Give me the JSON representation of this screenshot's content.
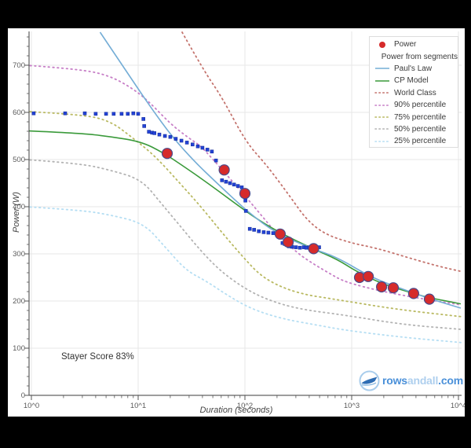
{
  "window": {
    "background": "#000000"
  },
  "chart": {
    "xlabel": "Duration (seconds)",
    "ylabel": "Power (W)",
    "annotation": "Stayer Score 83%",
    "x_tick_labels": [
      "10^0",
      "10^1",
      "10^2",
      "10^3",
      "10^4"
    ],
    "y_tick_labels": [
      "0",
      "100",
      "200",
      "300",
      "400",
      "500",
      "600",
      "700"
    ]
  },
  "legend": {
    "position": "top-right",
    "items": [
      {
        "label": "Power",
        "marker": "dot",
        "color": "#d62b2b"
      },
      {
        "label": "Power from segments",
        "marker": "dot",
        "color": "#2343d7"
      },
      {
        "label": "Paul's Law",
        "marker": "line",
        "color": "#74add6"
      },
      {
        "label": "CP Model",
        "marker": "line",
        "color": "#3a9a3a"
      },
      {
        "label": "World Class",
        "marker": "dotted-line",
        "color": "#c4736d"
      },
      {
        "label": "90% percentile",
        "marker": "dotted-line",
        "color": "#c77fc7"
      },
      {
        "label": "75% percentile",
        "marker": "dotted-line",
        "color": "#b9b961"
      },
      {
        "label": "50% percentile",
        "marker": "dotted-line",
        "color": "#b3b3b3"
      },
      {
        "label": "25% percentile",
        "marker": "dotted-line",
        "color": "#b5def3"
      }
    ]
  },
  "logo": {
    "part1": "rows",
    "part2": "andall",
    "part3": ".com"
  },
  "chart_data": {
    "type": "line",
    "x_scale": "log",
    "x_range": [
      1,
      10400
    ],
    "y_range": [
      0,
      772
    ],
    "grid": true,
    "xlabel": "Duration (seconds)",
    "ylabel": "Power (W)",
    "series": [
      {
        "name": "25% percentile",
        "kind": "line",
        "style": "dotted",
        "color": "#b5def3",
        "width": 1.8,
        "points": [
          [
            0.88,
            400
          ],
          [
            2.8,
            393
          ],
          [
            5.4,
            383
          ],
          [
            11.3,
            365
          ],
          [
            17.8,
            315
          ],
          [
            28,
            265
          ],
          [
            43.6,
            242
          ],
          [
            68.7,
            212
          ],
          [
            115,
            183
          ],
          [
            225,
            162
          ],
          [
            500,
            148
          ],
          [
            871,
            138
          ],
          [
            3010,
            123
          ],
          [
            10520,
            112
          ]
        ]
      },
      {
        "name": "50% percentile",
        "kind": "line",
        "style": "dotted",
        "color": "#b3b3b3",
        "width": 1.8,
        "points": [
          [
            0.88,
            500
          ],
          [
            2.8,
            492
          ],
          [
            5.4,
            478
          ],
          [
            10.7,
            458
          ],
          [
            16.3,
            408
          ],
          [
            25,
            358
          ],
          [
            38,
            308
          ],
          [
            58,
            265
          ],
          [
            97,
            228
          ],
          [
            160,
            203
          ],
          [
            316,
            183
          ],
          [
            871,
            170
          ],
          [
            3010,
            150
          ],
          [
            10520,
            140
          ]
        ]
      },
      {
        "name": "75% percentile",
        "kind": "line",
        "style": "dotted",
        "color": "#b9b961",
        "width": 1.8,
        "points": [
          [
            0.88,
            602
          ],
          [
            2.8,
            596
          ],
          [
            5.4,
            583
          ],
          [
            9,
            545
          ],
          [
            14.5,
            507
          ],
          [
            25,
            448
          ],
          [
            39.4,
            398
          ],
          [
            61,
            345
          ],
          [
            97,
            292
          ],
          [
            141,
            253
          ],
          [
            225,
            228
          ],
          [
            375,
            213
          ],
          [
            600,
            206
          ],
          [
            871,
            200
          ],
          [
            2716,
            182
          ],
          [
            10520,
            167
          ]
        ]
      },
      {
        "name": "90% percentile",
        "kind": "line",
        "style": "dotted",
        "color": "#c77fc7",
        "width": 1.8,
        "points": [
          [
            0.88,
            700
          ],
          [
            2.8,
            692
          ],
          [
            5.4,
            678
          ],
          [
            9,
            650
          ],
          [
            13,
            620
          ],
          [
            20,
            576
          ],
          [
            30,
            545
          ],
          [
            38,
            530
          ],
          [
            49,
            503
          ],
          [
            69,
            465
          ],
          [
            100,
            423
          ],
          [
            141,
            383
          ],
          [
            200,
            342
          ],
          [
            316,
            300
          ],
          [
            444,
            278
          ],
          [
            625,
            258
          ],
          [
            871,
            240
          ],
          [
            1946,
            220
          ],
          [
            4760,
            204
          ],
          [
            10520,
            192
          ]
        ]
      },
      {
        "name": "World Class",
        "kind": "line",
        "style": "dotted",
        "color": "#c4736d",
        "width": 1.8,
        "points": [
          [
            25.8,
            770
          ],
          [
            41.5,
            687
          ],
          [
            61,
            632
          ],
          [
            102,
            537
          ],
          [
            160,
            488
          ],
          [
            268,
            420
          ],
          [
            376,
            373
          ],
          [
            556,
            342
          ],
          [
            985,
            323
          ],
          [
            1720,
            312
          ],
          [
            3380,
            292
          ],
          [
            6650,
            273
          ],
          [
            10520,
            263
          ]
        ]
      },
      {
        "name": "CP Model",
        "kind": "line",
        "style": "solid",
        "color": "#3a9a3a",
        "width": 1.6,
        "points": [
          [
            0.88,
            561
          ],
          [
            2.8,
            556
          ],
          [
            5.4,
            549
          ],
          [
            10.7,
            538
          ],
          [
            17,
            515
          ],
          [
            25,
            490
          ],
          [
            43.6,
            452
          ],
          [
            77.7,
            410
          ],
          [
            135,
            371
          ],
          [
            225,
            342
          ],
          [
            421,
            312
          ],
          [
            738,
            288
          ],
          [
            1100,
            263
          ],
          [
            1946,
            236
          ],
          [
            3800,
            216
          ],
          [
            5345,
            207
          ],
          [
            10520,
            194
          ]
        ]
      },
      {
        "name": "Paul's Law",
        "kind": "line",
        "style": "solid",
        "color": "#74add6",
        "width": 1.6,
        "points": [
          [
            4.4,
            770
          ],
          [
            7.6,
            690
          ],
          [
            12.7,
            615
          ],
          [
            21,
            547
          ],
          [
            35,
            492
          ],
          [
            53,
            453
          ],
          [
            105,
            390
          ],
          [
            200,
            342
          ],
          [
            444,
            310
          ],
          [
            738,
            292
          ],
          [
            1452,
            253
          ],
          [
            2410,
            233
          ],
          [
            5345,
            205
          ],
          [
            10520,
            185
          ]
        ]
      },
      {
        "name": "Power from segments",
        "kind": "scatter",
        "marker": "square",
        "size": 4,
        "color": "#2343d7",
        "edge": "#17309e",
        "points": [
          [
            1.05,
            598
          ],
          [
            2.07,
            598
          ],
          [
            3.16,
            598
          ],
          [
            4,
            597
          ],
          [
            5,
            597
          ],
          [
            5.9,
            597
          ],
          [
            7,
            597
          ],
          [
            8,
            597
          ],
          [
            9,
            598
          ],
          [
            10,
            597
          ],
          [
            11.2,
            586
          ],
          [
            11.4,
            571
          ],
          [
            12.6,
            559
          ],
          [
            13.5,
            557
          ],
          [
            14.2,
            556
          ],
          [
            15.8,
            553
          ],
          [
            17.8,
            550
          ],
          [
            20,
            548
          ],
          [
            22.5,
            544
          ],
          [
            25.4,
            540
          ],
          [
            28.6,
            536
          ],
          [
            32.3,
            532
          ],
          [
            36.2,
            528
          ],
          [
            40,
            525
          ],
          [
            44.5,
            521
          ],
          [
            49,
            517
          ],
          [
            53.5,
            498
          ],
          [
            61,
            456
          ],
          [
            66.5,
            453
          ],
          [
            72.5,
            450
          ],
          [
            79,
            447
          ],
          [
            86,
            444
          ],
          [
            93.5,
            441
          ],
          [
            101,
            413
          ],
          [
            102,
            391
          ],
          [
            111,
            353
          ],
          [
            122,
            351
          ],
          [
            135,
            348
          ],
          [
            150,
            346
          ],
          [
            166,
            345
          ],
          [
            184,
            344
          ],
          [
            202,
            343
          ],
          [
            225,
            323
          ],
          [
            236,
            321
          ],
          [
            258,
            316
          ],
          [
            276,
            315
          ],
          [
            300,
            314
          ],
          [
            327,
            313
          ],
          [
            356,
            314
          ],
          [
            376,
            313
          ],
          [
            400,
            314
          ],
          [
            430,
            314
          ],
          [
            462,
            313
          ],
          [
            495,
            314
          ]
        ]
      },
      {
        "name": "Power",
        "kind": "scatter",
        "marker": "circle",
        "size": 13,
        "color": "#d62b2b",
        "edge": "#4a4a8a",
        "points": [
          [
            18.7,
            513
          ],
          [
            64,
            478
          ],
          [
            100,
            428
          ],
          [
            214,
            342
          ],
          [
            254,
            325
          ],
          [
            440,
            311
          ],
          [
            1185,
            250
          ],
          [
            1430,
            252
          ],
          [
            1905,
            230
          ],
          [
            2455,
            228
          ],
          [
            3800,
            216
          ],
          [
            5345,
            204
          ]
        ]
      }
    ]
  }
}
